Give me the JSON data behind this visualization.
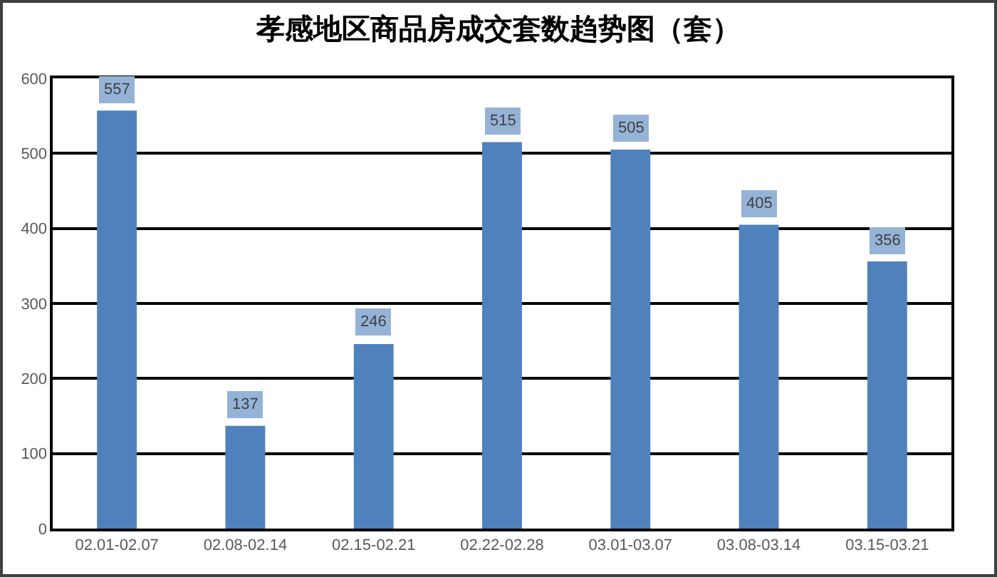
{
  "chart_data": {
    "type": "bar",
    "title": "孝感地区商品房成交套数趋势图（套）",
    "categories": [
      "02.01-02.07",
      "02.08-02.14",
      "02.15-02.21",
      "02.22-02.28",
      "03.01-03.07",
      "03.08-03.14",
      "03.15-03.21"
    ],
    "values": [
      557,
      137,
      246,
      515,
      505,
      405,
      356
    ],
    "color": "#4f81bd",
    "ylim": [
      0,
      600
    ],
    "yticks": [
      0,
      100,
      200,
      300,
      400,
      500,
      600
    ],
    "grid": "y",
    "data_labels": true
  }
}
